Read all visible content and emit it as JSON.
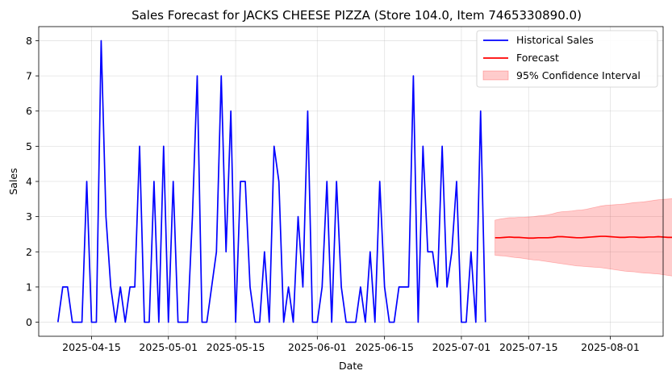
{
  "chart_data": {
    "type": "line",
    "title": "Sales Forecast for JACKS CHEESE PIZZA (Store 104.0, Item 7465330890.0)",
    "xlabel": "Date",
    "ylabel": "Sales",
    "ylim": [
      -0.4,
      8.4
    ],
    "xlim": [
      "2025-04-04",
      "2025-08-12"
    ],
    "grid": true,
    "legend_position": "top-right",
    "x_ticks": [
      "2025-04-15",
      "2025-05-01",
      "2025-05-15",
      "2025-06-01",
      "2025-06-15",
      "2025-07-01",
      "2025-07-15",
      "2025-08-01"
    ],
    "y_ticks": [
      0,
      1,
      2,
      3,
      4,
      5,
      6,
      7,
      8
    ],
    "series": [
      {
        "name": "Historical Sales",
        "color": "#0000ff",
        "start_date": "2025-04-08",
        "values": [
          0,
          1,
          1,
          0,
          0,
          0,
          4,
          0,
          0,
          8,
          3,
          1,
          0,
          1,
          0,
          1,
          1,
          5,
          0,
          0,
          4,
          0,
          5,
          0,
          4,
          0,
          0,
          0,
          3,
          7,
          0,
          0,
          1,
          2,
          7,
          2,
          6,
          0,
          4,
          4,
          1,
          0,
          0,
          2,
          0,
          5,
          4,
          0,
          1,
          0,
          3,
          1,
          6,
          0,
          0,
          1,
          4,
          0,
          4,
          1,
          0,
          0,
          0,
          1,
          0,
          2,
          0,
          4,
          1,
          0,
          0,
          1,
          1,
          1,
          7,
          0,
          5,
          2,
          2,
          1,
          5,
          1,
          2,
          4,
          0,
          0,
          2,
          0,
          6,
          0
        ]
      },
      {
        "name": "Forecast",
        "color": "#ff0000",
        "start_date": "2025-07-08",
        "values": [
          2.4,
          2.4,
          2.41,
          2.42,
          2.41,
          2.41,
          2.4,
          2.39,
          2.39,
          2.4,
          2.4,
          2.4,
          2.41,
          2.43,
          2.43,
          2.42,
          2.41,
          2.4,
          2.4,
          2.41,
          2.42,
          2.43,
          2.44,
          2.44,
          2.43,
          2.42,
          2.41,
          2.41,
          2.42,
          2.42,
          2.41,
          2.41,
          2.42,
          2.42,
          2.43,
          2.42,
          2.41,
          2.41,
          2.4,
          2.4,
          2.41,
          2.41
        ]
      }
    ],
    "confidence_interval": {
      "name": "95% Confidence Interval",
      "color": "#ff0000",
      "start_date": "2025-07-08",
      "upper": [
        2.9,
        2.93,
        2.95,
        2.97,
        2.97,
        2.98,
        2.98,
        2.99,
        3.0,
        3.02,
        3.03,
        3.05,
        3.08,
        3.12,
        3.14,
        3.15,
        3.16,
        3.18,
        3.19,
        3.21,
        3.24,
        3.27,
        3.3,
        3.32,
        3.33,
        3.34,
        3.35,
        3.36,
        3.38,
        3.4,
        3.41,
        3.42,
        3.44,
        3.46,
        3.48,
        3.49,
        3.5,
        3.51,
        3.52,
        3.53,
        3.55,
        3.58
      ],
      "lower": [
        1.9,
        1.89,
        1.88,
        1.86,
        1.84,
        1.83,
        1.81,
        1.79,
        1.77,
        1.76,
        1.74,
        1.72,
        1.7,
        1.68,
        1.66,
        1.64,
        1.62,
        1.6,
        1.59,
        1.58,
        1.57,
        1.56,
        1.55,
        1.53,
        1.51,
        1.49,
        1.47,
        1.45,
        1.44,
        1.43,
        1.41,
        1.4,
        1.39,
        1.38,
        1.37,
        1.35,
        1.33,
        1.31,
        1.29,
        1.27,
        1.25,
        1.23
      ]
    }
  }
}
